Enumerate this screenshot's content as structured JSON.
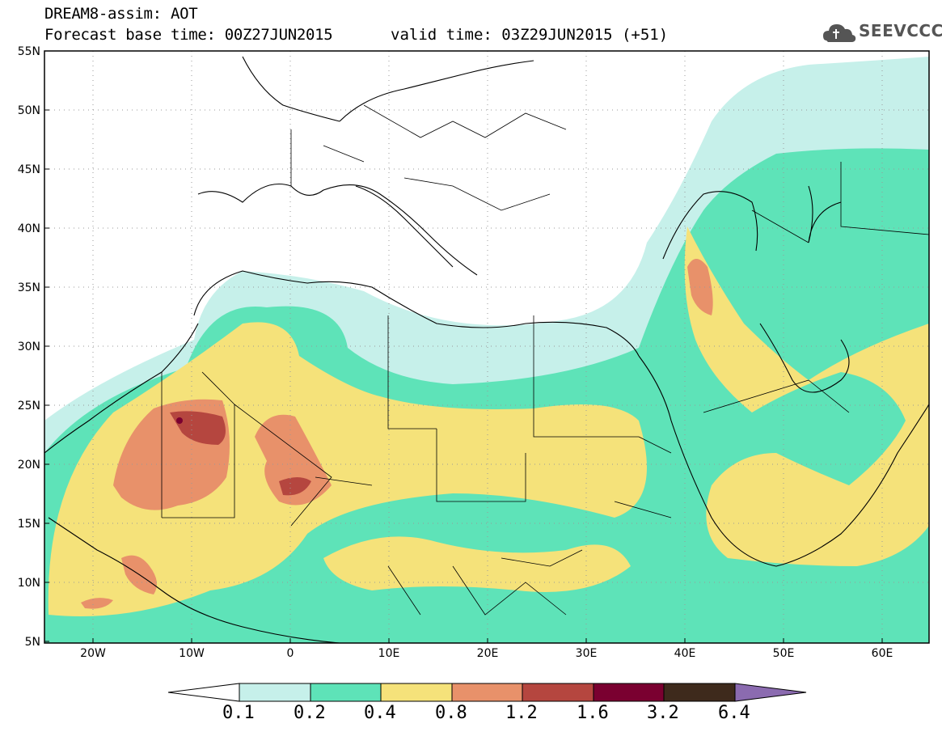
{
  "header": {
    "title": "DREAM8-assim: AOT",
    "base_time": "Forecast base time: 00Z27JUN2015",
    "valid_time": "valid time: 03Z29JUN2015 (+51)"
  },
  "logo": {
    "text": "SEEVCCC",
    "icon": "cloud-icon"
  },
  "axes": {
    "lat_labels": [
      "55N",
      "50N",
      "45N",
      "40N",
      "35N",
      "30N",
      "25N",
      "20N",
      "15N",
      "10N",
      "5N"
    ],
    "lon_labels": [
      "20W",
      "10W",
      "0",
      "10E",
      "20E",
      "30E",
      "40E",
      "50E",
      "60E"
    ]
  },
  "colorbar": {
    "labels": [
      "0.1",
      "0.2",
      "0.4",
      "0.8",
      "1.2",
      "1.6",
      "3.2",
      "6.4"
    ],
    "colors": [
      "#ffffff",
      "#c6f0ea",
      "#5ee3b8",
      "#f5e27a",
      "#e8916a",
      "#b5463f",
      "#7a0030",
      "#3e2a1c",
      "#8b6bb0"
    ]
  },
  "colors": {
    "c1": "#c6f0ea",
    "c2": "#5ee3b8",
    "c3": "#f5e27a",
    "c4": "#e8916a",
    "c5": "#b5463f",
    "c6": "#7a0030"
  }
}
